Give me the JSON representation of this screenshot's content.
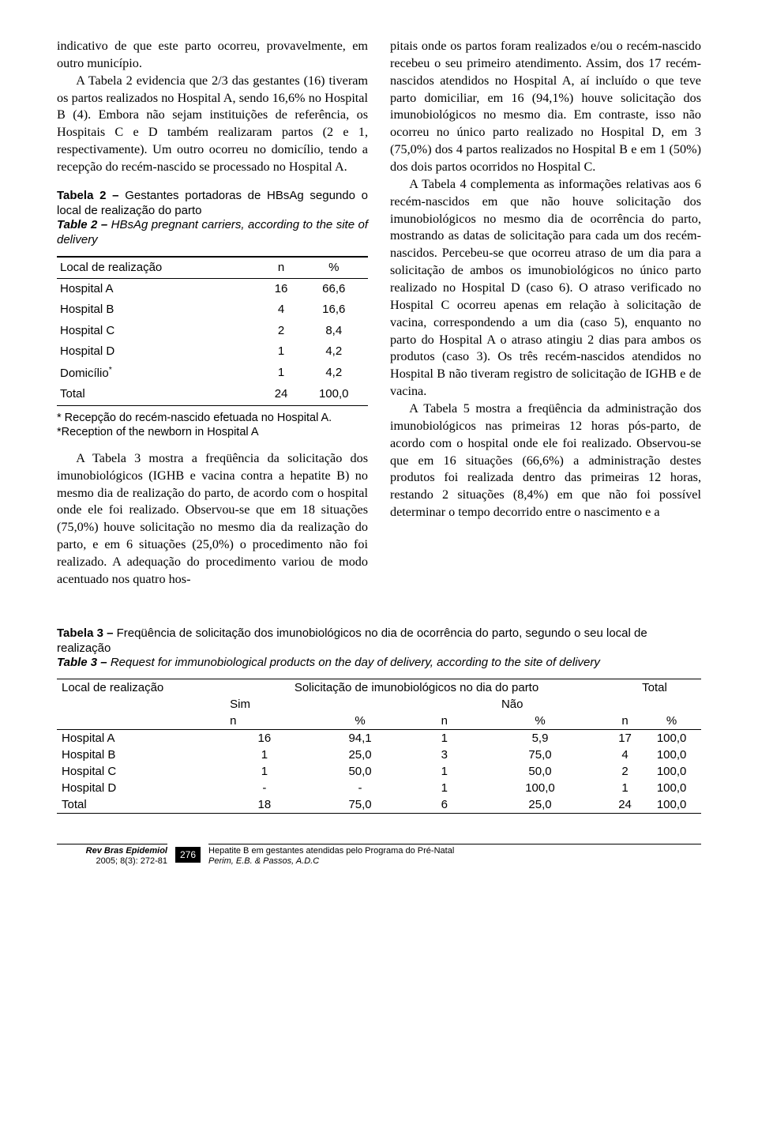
{
  "left_col": {
    "p1": "indicativo de que este parto ocorreu, provavelmente, em outro município.",
    "p2": "A Tabela 2 evidencia que 2/3 das gestantes (16) tiveram os partos realizados no Hospital A, sendo 16,6% no Hospital B (4). Embora não sejam instituições de referência, os Hospitais C e D também realizaram partos (2 e 1, respectivamente). Um outro ocorreu no domicílio, tendo a recepção do recém-nascido se processado no Hospital A.",
    "p3": "A Tabela 3 mostra a freqüência da solicitação dos imunobiológicos (IGHB e vacina contra a hepatite B) no mesmo dia de realização do parto, de acordo com o hospital onde ele foi realizado. Observou-se que em 18 situações (75,0%) houve solicitação no mesmo dia da realização do parto, e em 6 situações (25,0%) o procedimento não foi realizado. A adequação do procedimento variou de modo acentuado nos quatro hos-"
  },
  "right_col": {
    "p1": "pitais onde os partos foram realizados e/ou o recém-nascido recebeu o seu primeiro atendimento. Assim, dos 17 recém-nascidos atendidos no Hospital A, aí incluído o que teve parto domiciliar, em 16 (94,1%) houve solicitação dos imunobiológicos no mesmo dia. Em contraste, isso não ocorreu no único parto realizado no Hospital D, em 3 (75,0%) dos 4 partos realizados no Hospital B e em 1 (50%) dos dois partos ocorridos no Hospital C.",
    "p2": "A Tabela 4 complementa as informações relativas aos 6 recém-nascidos em que não houve solicitação dos imunobiológicos no mesmo dia de ocorrência do parto, mostrando as datas de solicitação para cada um dos recém-nascidos. Percebeu-se que ocorreu atraso de um dia para a solicitação de ambos os imunobiológicos no único parto realizado no Hospital D (caso 6). O atraso verificado no Hospital C ocorreu apenas em relação à solicitação de vacina, correspondendo a um dia (caso 5), enquanto no parto do Hospital A o atraso atingiu 2 dias para ambos os produtos (caso 3). Os três recém-nascidos atendidos no Hospital B não tiveram registro de solicitação de IGHB e de vacina.",
    "p3": "A Tabela 5 mostra a freqüência da administração dos imunobiológicos nas primeiras 12 horas pós-parto, de acordo com o hospital onde ele foi realizado. Observou-se que em 16 situações (66,6%) a administração destes produtos foi realizada dentro das primeiras 12 horas, restando 2 situações (8,4%) em que não foi possível determinar o tempo decorrido entre o nascimento e a"
  },
  "table2": {
    "caption_pt_lead": "Tabela 2 – ",
    "caption_pt": "Gestantes portadoras de HBsAg segundo o local de realização do parto",
    "caption_en_lead": "Table 2 – ",
    "caption_en": "HBsAg pregnant carriers, according to the site of delivery",
    "headers": [
      "Local de realização",
      "n",
      "%"
    ],
    "rows": [
      [
        "Hospital A",
        "16",
        "66,6"
      ],
      [
        "Hospital B",
        "4",
        "16,6"
      ],
      [
        "Hospital C",
        "2",
        "8,4"
      ],
      [
        "Hospital D",
        "1",
        "4,2"
      ],
      [
        "Domicílio*",
        "1",
        "4,2"
      ],
      [
        "Total",
        "24",
        "100,0"
      ]
    ],
    "note_pt": "* Recepção do recém-nascido efetuada no Hospital A.",
    "note_en": "*Reception of the newborn in Hospital A"
  },
  "table3": {
    "caption_pt_lead": "Tabela 3 – ",
    "caption_pt": "Freqüência de solicitação dos imunobiológicos no dia de ocorrência do parto, segundo o seu local de realização",
    "caption_en_lead": "Table 3 – ",
    "caption_en": "Request for immunobiological products on the day of delivery, according to the site of delivery",
    "h_local": "Local de realização",
    "h_solic": "Solicitação de imunobiológicos no dia do parto",
    "h_sim": "Sim",
    "h_nao": "Não",
    "h_total": "Total",
    "h_n": "n",
    "h_pct": "%",
    "rows": [
      [
        "Hospital A",
        "16",
        "94,1",
        "1",
        "5,9",
        "17",
        "100,0"
      ],
      [
        "Hospital B",
        "1",
        "25,0",
        "3",
        "75,0",
        "4",
        "100,0"
      ],
      [
        "Hospital C",
        "1",
        "50,0",
        "1",
        "50,0",
        "2",
        "100,0"
      ],
      [
        "Hospital D",
        "-",
        "-",
        "1",
        "100,0",
        "1",
        "100,0"
      ],
      [
        "Total",
        "18",
        "75,0",
        "6",
        "25,0",
        "24",
        "100,0"
      ]
    ]
  },
  "footer": {
    "journal": "Rev Bras Epidemiol",
    "issue": "2005; 8(3): 272-81",
    "page_number": "276",
    "article_title": "Hepatite B em gestantes atendidas pelo Programa do Pré-Natal",
    "authors": "Perim, E.B. & Passos, A.D.C"
  }
}
